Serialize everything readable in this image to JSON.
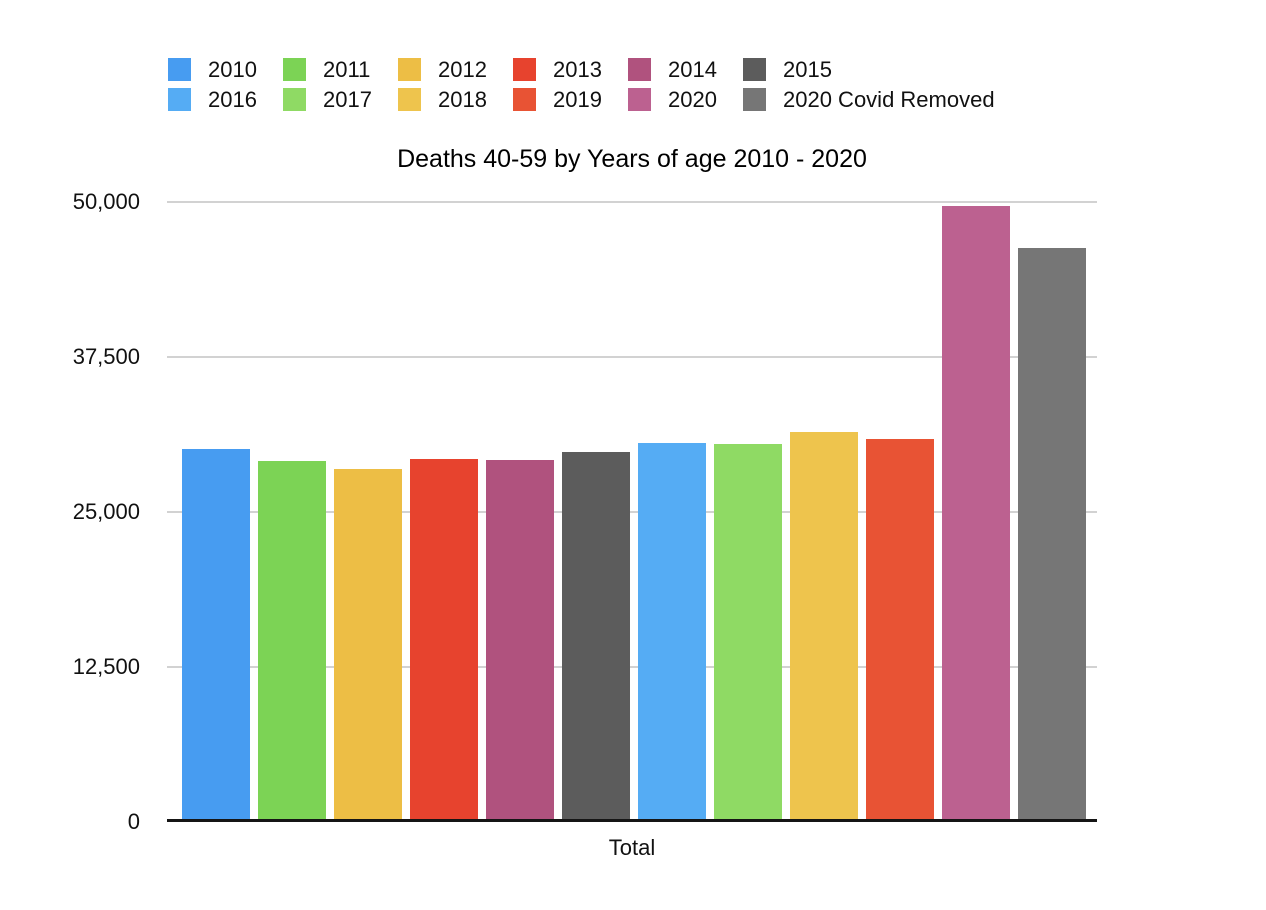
{
  "chart_data": {
    "type": "bar",
    "title": "Deaths 40-59 by Years of age 2010 - 2020",
    "xlabel": "Total",
    "categories": [
      "Total"
    ],
    "series": [
      {
        "name": "2010",
        "color": "#479cf1",
        "values": [
          30100
        ]
      },
      {
        "name": "2011",
        "color": "#7cd355",
        "values": [
          29150
        ]
      },
      {
        "name": "2012",
        "color": "#edbe45",
        "values": [
          28450
        ]
      },
      {
        "name": "2013",
        "color": "#e7432e",
        "values": [
          29250
        ]
      },
      {
        "name": "2014",
        "color": "#b0527e",
        "values": [
          29200
        ]
      },
      {
        "name": "2015",
        "color": "#5c5c5c",
        "values": [
          29850
        ]
      },
      {
        "name": "2016",
        "color": "#55acf4",
        "values": [
          30550
        ]
      },
      {
        "name": "2017",
        "color": "#8fda64",
        "values": [
          30450
        ]
      },
      {
        "name": "2018",
        "color": "#eec44d",
        "values": [
          31450
        ]
      },
      {
        "name": "2019",
        "color": "#e85334",
        "values": [
          30850
        ]
      },
      {
        "name": "2020",
        "color": "#bc6190",
        "values": [
          49700
        ]
      },
      {
        "name": "2020 Covid Removed",
        "color": "#767676",
        "values": [
          46300
        ]
      }
    ],
    "ylim": [
      0,
      50000
    ],
    "yticks": [
      0,
      12500,
      25000,
      37500,
      50000
    ],
    "ytick_labels": [
      "0",
      "12,500",
      "25,000",
      "37,500",
      "50,000"
    ],
    "grid": true,
    "legend_position": "top",
    "legend_items_per_row": 6
  }
}
